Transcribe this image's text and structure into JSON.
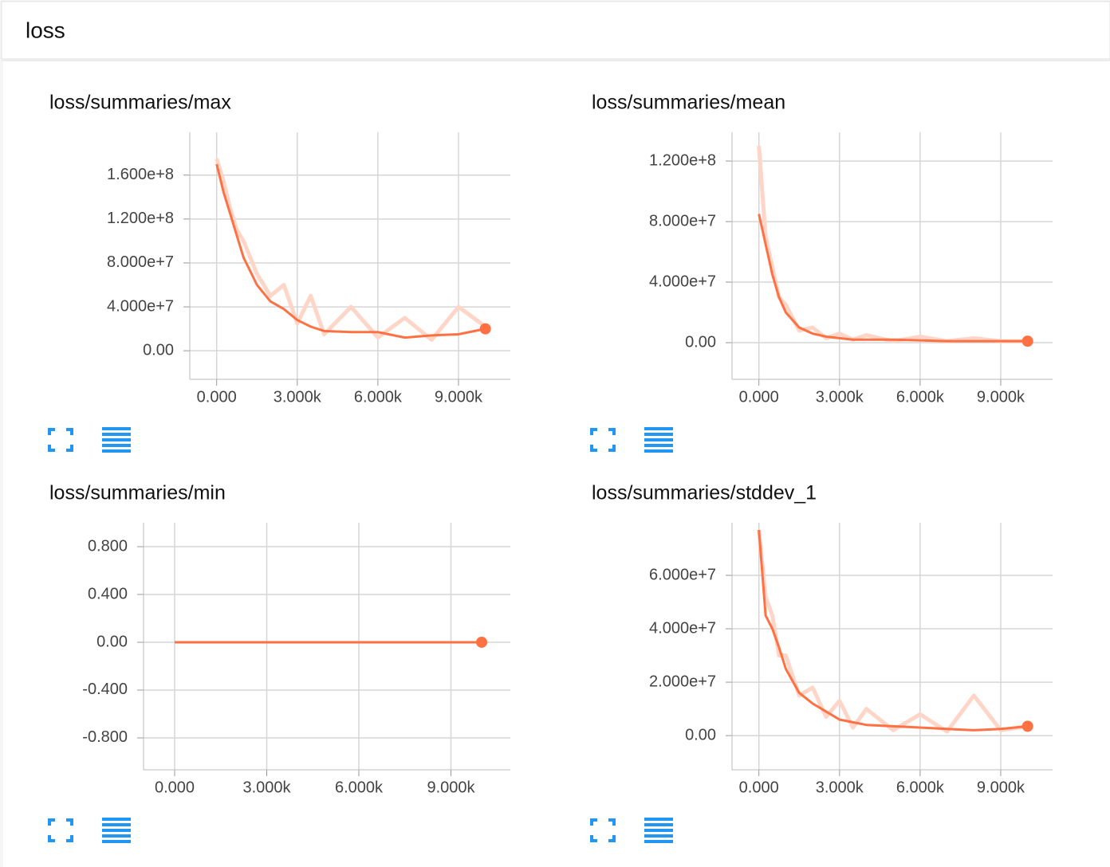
{
  "header": {
    "title": "loss"
  },
  "chart_data": [
    {
      "type": "line",
      "title": "loss/summaries/max",
      "x": [
        0,
        250,
        500,
        750,
        1000,
        1500,
        2000,
        2500,
        3000,
        3500,
        4000,
        5000,
        6000,
        7000,
        8000,
        9000,
        10000
      ],
      "series": [
        {
          "color": "#ffd5c7",
          "values": [
            175000000,
            155000000,
            130000000,
            110000000,
            100000000,
            70000000,
            50000000,
            60000000,
            25000000,
            50000000,
            15000000,
            40000000,
            12000000,
            30000000,
            10000000,
            40000000,
            22000000
          ]
        },
        {
          "color": "#ff7043",
          "values": [
            170000000,
            145000000,
            125000000,
            105000000,
            85000000,
            60000000,
            45000000,
            38000000,
            28000000,
            22000000,
            18000000,
            17000000,
            17000000,
            12000000,
            14000000,
            15000000,
            20000000
          ]
        }
      ],
      "xlim": [
        -1000,
        10930
      ],
      "ylim": [
        -26000000,
        199000000
      ],
      "xticks": [
        {
          "value": 0,
          "label": "0.000"
        },
        {
          "value": 3000,
          "label": "3.000k"
        },
        {
          "value": 6000,
          "label": "6.000k"
        },
        {
          "value": 9000,
          "label": "9.000k"
        }
      ],
      "yticks": [
        {
          "value": 0,
          "label": "0.00"
        },
        {
          "value": 40000000,
          "label": "4.000e+7"
        },
        {
          "value": 80000000,
          "label": "8.000e+7"
        },
        {
          "value": 120000000,
          "label": "1.200e+8"
        },
        {
          "value": 160000000,
          "label": "1.600e+8"
        }
      ],
      "grid": true
    },
    {
      "type": "line",
      "title": "loss/summaries/mean",
      "x": [
        0,
        250,
        500,
        750,
        1000,
        1500,
        2000,
        2500,
        3000,
        3500,
        4000,
        5000,
        6000,
        7000,
        8000,
        9000,
        10000
      ],
      "series": [
        {
          "color": "#ffd5c7",
          "values": [
            130000000,
            70000000,
            50000000,
            30000000,
            25000000,
            8000000,
            10000000,
            3000000,
            6000000,
            2000000,
            5000000,
            1000000,
            4000000,
            1000000,
            3000000,
            1000000,
            1000000
          ]
        },
        {
          "color": "#ff7043",
          "values": [
            85000000,
            65000000,
            45000000,
            30000000,
            20000000,
            10000000,
            6000000,
            4000000,
            3000000,
            2000000,
            2000000,
            2000000,
            1500000,
            1000000,
            1000000,
            1000000,
            1000000
          ]
        }
      ],
      "xlim": [
        -1000,
        10930
      ],
      "ylim": [
        -24200000,
        139000000
      ],
      "xticks": [
        {
          "value": 0,
          "label": "0.000"
        },
        {
          "value": 3000,
          "label": "3.000k"
        },
        {
          "value": 6000,
          "label": "6.000k"
        },
        {
          "value": 9000,
          "label": "9.000k"
        }
      ],
      "yticks": [
        {
          "value": 0,
          "label": "0.00"
        },
        {
          "value": 40000000,
          "label": "4.000e+7"
        },
        {
          "value": 80000000,
          "label": "8.000e+7"
        },
        {
          "value": 120000000,
          "label": "1.200e+8"
        }
      ],
      "grid": true
    },
    {
      "type": "line",
      "title": "loss/summaries/min",
      "x": [
        0,
        10000
      ],
      "series": [
        {
          "color": "#ff7043",
          "values": [
            0,
            0
          ]
        }
      ],
      "xlim": [
        -1013,
        10935
      ],
      "ylim": [
        -1.067,
        1.0
      ],
      "xticks": [
        {
          "value": 0,
          "label": "0.000"
        },
        {
          "value": 3000,
          "label": "3.000k"
        },
        {
          "value": 6000,
          "label": "6.000k"
        },
        {
          "value": 9000,
          "label": "9.000k"
        }
      ],
      "yticks": [
        {
          "value": -0.8,
          "label": "-0.800"
        },
        {
          "value": -0.4,
          "label": "-0.400"
        },
        {
          "value": 0,
          "label": "0.00"
        },
        {
          "value": 0.4,
          "label": "0.400"
        },
        {
          "value": 0.8,
          "label": "0.800"
        }
      ],
      "grid": true
    },
    {
      "type": "line",
      "title": "loss/summaries/stddev_1",
      "x": [
        0,
        250,
        500,
        750,
        1000,
        1500,
        2000,
        2500,
        3000,
        3500,
        4000,
        5000,
        6000,
        7000,
        8000,
        9000,
        10000
      ],
      "series": [
        {
          "color": "#ffd5c7",
          "values": [
            77000000,
            52000000,
            45000000,
            30000000,
            30000000,
            15000000,
            18000000,
            7000000,
            13000000,
            3000000,
            10000000,
            2000000,
            8000000,
            1500000,
            15000000,
            2000000,
            3500000
          ]
        },
        {
          "color": "#ff7043",
          "values": [
            77000000,
            45000000,
            40000000,
            33000000,
            25000000,
            16000000,
            12000000,
            9000000,
            6000000,
            5000000,
            4000000,
            3500000,
            3000000,
            2500000,
            2000000,
            2500000,
            3500000
          ]
        }
      ],
      "xlim": [
        -1000,
        10930
      ],
      "ylim": [
        -12800000,
        79700000
      ],
      "xticks": [
        {
          "value": 0,
          "label": "0.000"
        },
        {
          "value": 3000,
          "label": "3.000k"
        },
        {
          "value": 6000,
          "label": "6.000k"
        },
        {
          "value": 9000,
          "label": "9.000k"
        }
      ],
      "yticks": [
        {
          "value": 0,
          "label": "0.00"
        },
        {
          "value": 20000000,
          "label": "2.000e+7"
        },
        {
          "value": 40000000,
          "label": "4.000e+7"
        },
        {
          "value": 60000000,
          "label": "6.000e+7"
        }
      ],
      "grid": true
    }
  ]
}
